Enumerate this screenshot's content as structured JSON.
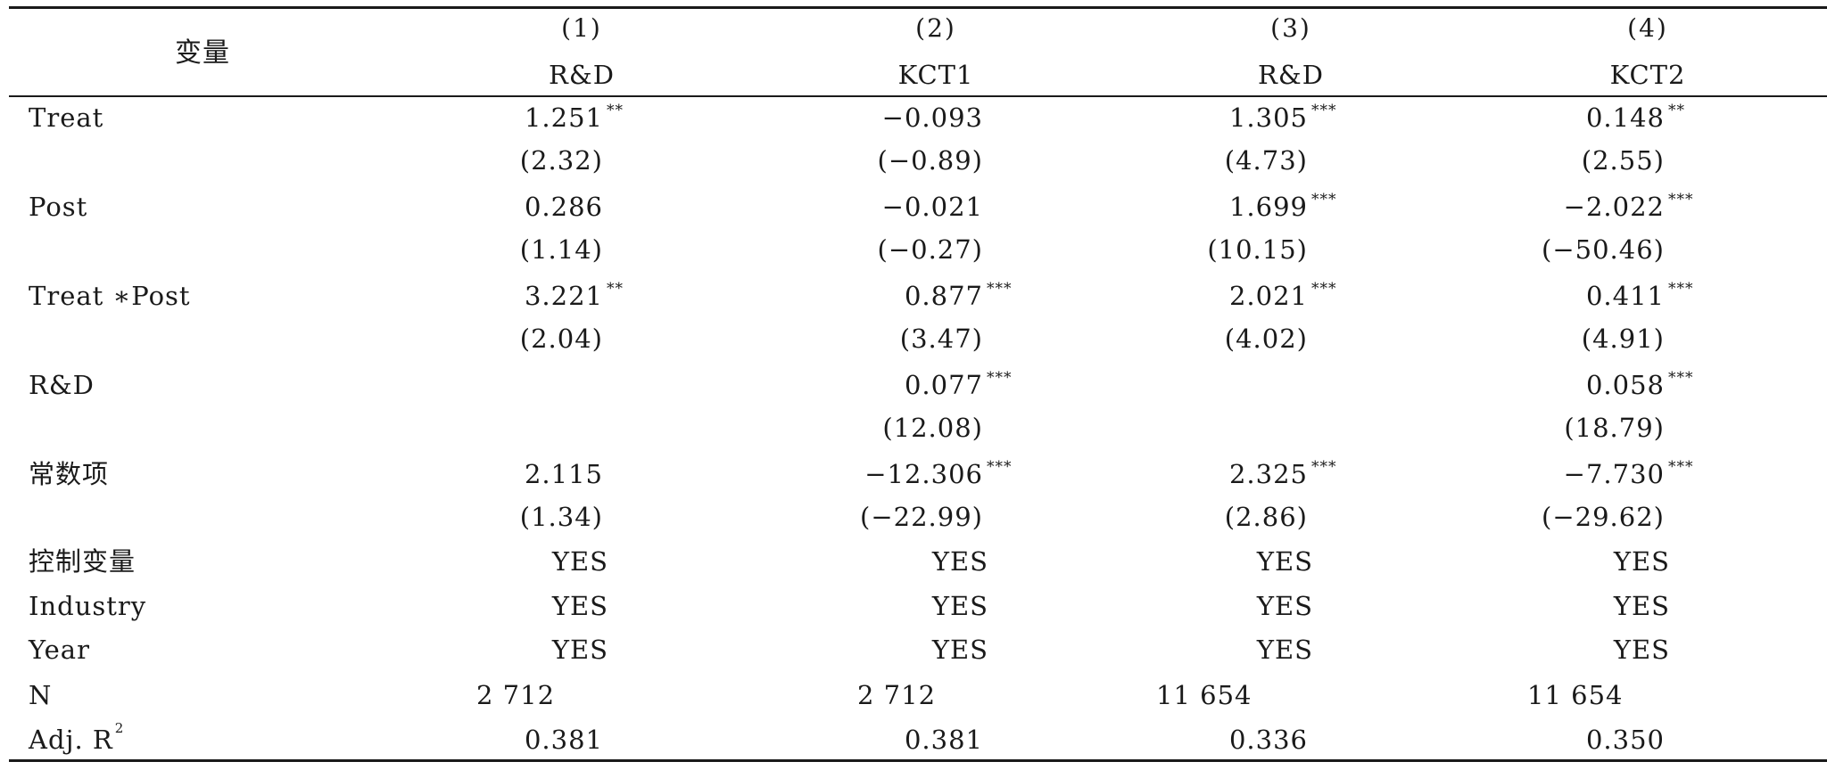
{
  "table": {
    "header": {
      "row_label": "变量",
      "columns": [
        {
          "number": "(1)",
          "dep_var": "R&D"
        },
        {
          "number": "(2)",
          "dep_var": "KCT1"
        },
        {
          "number": "(3)",
          "dep_var": "R&D"
        },
        {
          "number": "(4)",
          "dep_var": "KCT2"
        }
      ]
    },
    "rows": [
      {
        "label": "Treat",
        "coef": [
          {
            "v": "1.251",
            "s": "**"
          },
          {
            "v": "−0.093",
            "s": ""
          },
          {
            "v": "1.305",
            "s": "***"
          },
          {
            "v": "0.148",
            "s": "**"
          }
        ],
        "t": [
          "(2.32)",
          "(−0.89)",
          "(4.73)",
          "(2.55)"
        ]
      },
      {
        "label": "Post",
        "coef": [
          {
            "v": "0.286",
            "s": ""
          },
          {
            "v": "−0.021",
            "s": ""
          },
          {
            "v": "1.699",
            "s": "***"
          },
          {
            "v": "−2.022",
            "s": "***"
          }
        ],
        "t": [
          "(1.14)",
          "(−0.27)",
          "(10.15)",
          "(−50.46)"
        ]
      },
      {
        "label": "Treat ∗Post",
        "coef": [
          {
            "v": "3.221",
            "s": "**"
          },
          {
            "v": "0.877",
            "s": "***"
          },
          {
            "v": "2.021",
            "s": "***"
          },
          {
            "v": "0.411",
            "s": "***"
          }
        ],
        "t": [
          "(2.04)",
          "(3.47)",
          "(4.02)",
          "(4.91)"
        ]
      },
      {
        "label": "R&D",
        "coef": [
          {
            "v": "",
            "s": ""
          },
          {
            "v": "0.077",
            "s": "***"
          },
          {
            "v": "",
            "s": ""
          },
          {
            "v": "0.058",
            "s": "***"
          }
        ],
        "t": [
          "",
          "(12.08)",
          "",
          "(18.79)"
        ]
      },
      {
        "label": "常数项",
        "coef": [
          {
            "v": "2.115",
            "s": ""
          },
          {
            "v": "−12.306",
            "s": "***"
          },
          {
            "v": "2.325",
            "s": "***"
          },
          {
            "v": "−7.730",
            "s": "***"
          }
        ],
        "t": [
          "(1.34)",
          "(−22.99)",
          "(2.86)",
          "(−29.62)"
        ]
      }
    ],
    "controls": [
      {
        "label": "控制变量",
        "values": [
          "YES",
          "YES",
          "YES",
          "YES"
        ]
      },
      {
        "label": "Industry",
        "values": [
          "YES",
          "YES",
          "YES",
          "YES"
        ]
      },
      {
        "label": "Year",
        "values": [
          "YES",
          "YES",
          "YES",
          "YES"
        ]
      }
    ],
    "n_row": {
      "label": "N",
      "values": [
        "2 712",
        "2 712",
        "11 654",
        "11 654"
      ]
    },
    "r2_row": {
      "label": "Adj. R",
      "label_sup": "2",
      "values": [
        "0.381",
        "0.381",
        "0.336",
        "0.350"
      ]
    }
  }
}
